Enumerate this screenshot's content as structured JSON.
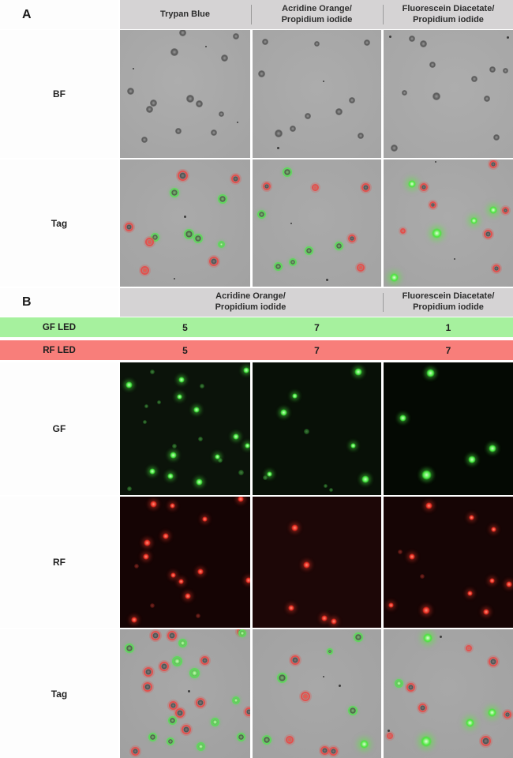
{
  "panel_a": {
    "label": "A",
    "column_headers": [
      "Trypan Blue",
      "Acridine Orange/\nPropidium iodide",
      "Fluorescein Diacetate/\nPropidium iodide"
    ],
    "row_labels": [
      "BF",
      "Tag"
    ]
  },
  "panel_b": {
    "label": "B",
    "column_headers": [
      "Acridine Orange/\nPropidium iodide",
      "Fluorescein Diacetate/\nPropidium iodide"
    ],
    "led_rows": [
      {
        "label": "GF LED",
        "values": [
          "5",
          "7",
          "1"
        ],
        "color": "#a6f19e"
      },
      {
        "label": "RF LED",
        "values": [
          "5",
          "7",
          "7"
        ],
        "color": "#f87e7a"
      }
    ],
    "row_labels": [
      "GF",
      "RF",
      "Tag"
    ]
  },
  "colors": {
    "header_gray": "#d5d3d4",
    "gf_led_bar": "#a6f19e",
    "rf_led_bar": "#f87e7a",
    "brightfield_gray": "#a9a9a9",
    "tag_gray": "#a4a4a4",
    "green_fluorescence": "#43e73d",
    "red_fluorescence": "#e92d21",
    "dead_ring": "#e2504d",
    "live_ring": "#5fd75c"
  },
  "tiles": {
    "a_bf_1": {
      "bg": "radial-gradient(circle at 45% 40%, #adadad, #a3a3a3)",
      "cells": [
        [
          0.48,
          0.02,
          "bf",
          9
        ],
        [
          0.89,
          0.05,
          "bf",
          8
        ],
        [
          0.42,
          0.17,
          "bf",
          10
        ],
        [
          0.8,
          0.22,
          "bf",
          9
        ],
        [
          0.08,
          0.48,
          "bf",
          9
        ],
        [
          0.26,
          0.57,
          "bf",
          9
        ],
        [
          0.23,
          0.62,
          "bf",
          9
        ],
        [
          0.54,
          0.54,
          "bf",
          10
        ],
        [
          0.61,
          0.58,
          "bf",
          9
        ],
        [
          0.78,
          0.66,
          "bf",
          7
        ],
        [
          0.45,
          0.79,
          "bf",
          8
        ],
        [
          0.72,
          0.8,
          "bf",
          8
        ],
        [
          0.19,
          0.86,
          "bf",
          8
        ],
        [
          0.66,
          0.13,
          "sp",
          2
        ],
        [
          0.1,
          0.3,
          "sp",
          2
        ],
        [
          0.9,
          0.72,
          "sp",
          2
        ]
      ]
    },
    "a_bf_2": {
      "bg": "radial-gradient(circle at 50% 45%, #acacac, #a4a4a4)",
      "cells": [
        [
          0.1,
          0.09,
          "bf",
          8
        ],
        [
          0.5,
          0.11,
          "bf",
          7
        ],
        [
          0.89,
          0.1,
          "bf",
          8
        ],
        [
          0.07,
          0.34,
          "bf",
          9
        ],
        [
          0.77,
          0.55,
          "bf",
          8
        ],
        [
          0.67,
          0.64,
          "bf",
          9
        ],
        [
          0.43,
          0.67,
          "bf",
          8
        ],
        [
          0.31,
          0.77,
          "bf",
          8
        ],
        [
          0.2,
          0.81,
          "bf",
          10
        ],
        [
          0.84,
          0.83,
          "bf",
          8
        ],
        [
          0.2,
          0.92,
          "sp",
          3
        ],
        [
          0.55,
          0.4,
          "sp",
          2
        ]
      ]
    },
    "a_bf_3": {
      "bg": "radial-gradient(circle at 55% 45%, #adadad, #a5a5a5)",
      "cells": [
        [
          0.22,
          0.07,
          "bf",
          8
        ],
        [
          0.31,
          0.11,
          "bf",
          9
        ],
        [
          0.38,
          0.27,
          "bf",
          8
        ],
        [
          0.84,
          0.31,
          "bf",
          8
        ],
        [
          0.94,
          0.32,
          "bf",
          7
        ],
        [
          0.7,
          0.38,
          "bf",
          8
        ],
        [
          0.16,
          0.49,
          "bf",
          7
        ],
        [
          0.41,
          0.52,
          "bf",
          10
        ],
        [
          0.8,
          0.54,
          "bf",
          8
        ],
        [
          0.87,
          0.84,
          "bf",
          8
        ],
        [
          0.08,
          0.92,
          "bf",
          9
        ],
        [
          0.05,
          0.05,
          "sp",
          3
        ],
        [
          0.96,
          0.06,
          "sp",
          3
        ]
      ]
    },
    "a_tag_1": {
      "bg": "radial-gradient(circle at 45% 45%, #aaaaaa, #a2a2a2)",
      "cells": [
        [
          0.48,
          0.13,
          "dead",
          13
        ],
        [
          0.89,
          0.15,
          "dead",
          11
        ],
        [
          0.42,
          0.26,
          "live",
          12
        ],
        [
          0.79,
          0.31,
          "live",
          12
        ],
        [
          0.07,
          0.53,
          "dead",
          11
        ],
        [
          0.27,
          0.61,
          "live",
          11
        ],
        [
          0.23,
          0.65,
          "deadr",
          11
        ],
        [
          0.53,
          0.59,
          "live",
          13
        ],
        [
          0.6,
          0.62,
          "live",
          12
        ],
        [
          0.78,
          0.67,
          "liveg",
          9
        ],
        [
          0.72,
          0.8,
          "dead",
          12
        ],
        [
          0.19,
          0.87,
          "deadr",
          11
        ],
        [
          0.5,
          0.45,
          "sp",
          3
        ],
        [
          0.42,
          0.94,
          "sp",
          2
        ]
      ]
    },
    "a_tag_2": {
      "bg": "radial-gradient(circle at 50% 45%, #aaaaaa, #a3a3a3)",
      "cells": [
        [
          0.27,
          0.1,
          "live",
          12
        ],
        [
          0.11,
          0.21,
          "dead",
          10
        ],
        [
          0.49,
          0.22,
          "deadr",
          9
        ],
        [
          0.88,
          0.22,
          "dead",
          11
        ],
        [
          0.07,
          0.43,
          "live",
          11
        ],
        [
          0.44,
          0.72,
          "live",
          11
        ],
        [
          0.67,
          0.68,
          "live",
          11
        ],
        [
          0.77,
          0.62,
          "dead",
          10
        ],
        [
          0.2,
          0.84,
          "live",
          11
        ],
        [
          0.31,
          0.81,
          "live",
          10
        ],
        [
          0.84,
          0.85,
          "deadr",
          10
        ],
        [
          0.58,
          0.95,
          "sp",
          3
        ],
        [
          0.3,
          0.5,
          "sp",
          2
        ]
      ]
    },
    "a_tag_3": {
      "bg": "radial-gradient(circle at 50% 45%, #ababab, #a3a3a3)",
      "cells": [
        [
          0.85,
          0.04,
          "dead",
          10
        ],
        [
          0.22,
          0.19,
          "glow",
          10
        ],
        [
          0.31,
          0.22,
          "dead",
          10
        ],
        [
          0.38,
          0.36,
          "dead",
          9
        ],
        [
          0.85,
          0.4,
          "glow",
          10
        ],
        [
          0.94,
          0.4,
          "dead",
          9
        ],
        [
          0.7,
          0.48,
          "glow",
          9
        ],
        [
          0.15,
          0.56,
          "deadr",
          7
        ],
        [
          0.41,
          0.58,
          "glow",
          13
        ],
        [
          0.81,
          0.59,
          "dead",
          11
        ],
        [
          0.87,
          0.86,
          "dead",
          10
        ],
        [
          0.08,
          0.93,
          "glow",
          11
        ],
        [
          0.4,
          0.02,
          "sp",
          2
        ],
        [
          0.55,
          0.78,
          "sp",
          2
        ]
      ]
    },
    "b_gf_1": {
      "bg": "#0b130a",
      "cells": [
        [
          0.07,
          0.17,
          "gf",
          9
        ],
        [
          0.25,
          0.07,
          "gfd",
          6
        ],
        [
          0.47,
          0.13,
          "gf",
          8
        ],
        [
          0.63,
          0.18,
          "gfd",
          6
        ],
        [
          0.97,
          0.06,
          "gf",
          8
        ],
        [
          0.46,
          0.26,
          "gf",
          7
        ],
        [
          0.3,
          0.3,
          "gfd",
          5
        ],
        [
          0.2,
          0.33,
          "gfd",
          5
        ],
        [
          0.59,
          0.36,
          "gf",
          8
        ],
        [
          0.19,
          0.45,
          "gfd",
          5
        ],
        [
          0.62,
          0.58,
          "gfd",
          6
        ],
        [
          0.89,
          0.56,
          "gf",
          8
        ],
        [
          0.42,
          0.63,
          "gfd",
          6
        ],
        [
          0.98,
          0.63,
          "gf",
          7
        ],
        [
          0.41,
          0.7,
          "gf",
          9
        ],
        [
          0.75,
          0.71,
          "gf",
          7
        ],
        [
          0.77,
          0.74,
          "gfd",
          6
        ],
        [
          0.25,
          0.82,
          "gf",
          8
        ],
        [
          0.39,
          0.86,
          "gf",
          8
        ],
        [
          0.61,
          0.9,
          "gf",
          9
        ],
        [
          0.93,
          0.83,
          "gfd",
          7
        ],
        [
          0.07,
          0.95,
          "gfd",
          6
        ]
      ]
    },
    "b_gf_2": {
      "bg": "#081007",
      "cells": [
        [
          0.82,
          0.07,
          "gf",
          10
        ],
        [
          0.33,
          0.25,
          "gf",
          7
        ],
        [
          0.24,
          0.38,
          "gf",
          9
        ],
        [
          0.42,
          0.52,
          "gfd",
          7
        ],
        [
          0.78,
          0.63,
          "gf",
          7
        ],
        [
          0.13,
          0.84,
          "gf",
          7
        ],
        [
          0.1,
          0.87,
          "gfd",
          6
        ],
        [
          0.88,
          0.88,
          "gf",
          10
        ],
        [
          0.57,
          0.93,
          "gfd",
          5
        ],
        [
          0.61,
          0.96,
          "gfd",
          5
        ]
      ]
    },
    "b_gf_3": {
      "bg": "#040903",
      "cells": [
        [
          0.36,
          0.08,
          "gf",
          11
        ],
        [
          0.15,
          0.42,
          "gf",
          9
        ],
        [
          0.84,
          0.65,
          "gf",
          10
        ],
        [
          0.68,
          0.73,
          "gf",
          10
        ],
        [
          0.33,
          0.85,
          "gf",
          13
        ]
      ]
    },
    "b_rf_1": {
      "bg": "#150404",
      "cells": [
        [
          0.26,
          0.06,
          "rf",
          9
        ],
        [
          0.4,
          0.07,
          "rf",
          7
        ],
        [
          0.93,
          0.02,
          "rf",
          8
        ],
        [
          0.65,
          0.17,
          "rf",
          7
        ],
        [
          0.35,
          0.3,
          "rf",
          8
        ],
        [
          0.21,
          0.35,
          "rf",
          9
        ],
        [
          0.2,
          0.46,
          "rf",
          8
        ],
        [
          0.13,
          0.53,
          "rfd",
          6
        ],
        [
          0.62,
          0.57,
          "rf",
          8
        ],
        [
          0.41,
          0.6,
          "rf",
          7
        ],
        [
          0.47,
          0.65,
          "rf",
          7
        ],
        [
          0.99,
          0.64,
          "rf",
          8
        ],
        [
          0.52,
          0.76,
          "rf",
          8
        ],
        [
          0.25,
          0.83,
          "rfd",
          6
        ],
        [
          0.6,
          0.91,
          "rfd",
          6
        ],
        [
          0.11,
          0.94,
          "rf",
          8
        ]
      ]
    },
    "b_rf_2": {
      "bg": "#1d0707",
      "cells": [
        [
          0.33,
          0.24,
          "rf",
          9
        ],
        [
          0.42,
          0.52,
          "rf",
          9
        ],
        [
          0.3,
          0.85,
          "rf",
          8
        ],
        [
          0.56,
          0.93,
          "rf",
          8
        ],
        [
          0.63,
          0.95,
          "rf",
          8
        ]
      ]
    },
    "b_rf_3": {
      "bg": "#160505",
      "cells": [
        [
          0.35,
          0.07,
          "rf",
          9
        ],
        [
          0.68,
          0.16,
          "rf",
          7
        ],
        [
          0.85,
          0.25,
          "rf",
          7
        ],
        [
          0.13,
          0.42,
          "rfd",
          6
        ],
        [
          0.22,
          0.46,
          "rf",
          8
        ],
        [
          0.3,
          0.61,
          "rfd",
          6
        ],
        [
          0.84,
          0.64,
          "rf",
          7
        ],
        [
          0.97,
          0.67,
          "rf",
          8
        ],
        [
          0.67,
          0.74,
          "rf",
          7
        ],
        [
          0.06,
          0.83,
          "rf",
          7
        ],
        [
          0.33,
          0.87,
          "rf",
          10
        ],
        [
          0.79,
          0.88,
          "rf",
          8
        ]
      ]
    },
    "b_tag_1": {
      "bg": "radial-gradient(circle at 50% 45%, #a8a8a8, #a0a0a0)",
      "cells": [
        [
          0.27,
          0.05,
          "dead",
          12
        ],
        [
          0.4,
          0.05,
          "dead",
          12
        ],
        [
          0.93,
          0.02,
          "dead",
          10
        ],
        [
          0.65,
          0.24,
          "dead",
          11
        ],
        [
          0.34,
          0.29,
          "dead",
          12
        ],
        [
          0.22,
          0.33,
          "dead",
          12
        ],
        [
          0.21,
          0.45,
          "dead",
          12
        ],
        [
          0.62,
          0.57,
          "dead",
          12
        ],
        [
          0.41,
          0.59,
          "dead",
          11
        ],
        [
          0.46,
          0.65,
          "dead",
          12
        ],
        [
          0.99,
          0.64,
          "dead",
          11
        ],
        [
          0.51,
          0.78,
          "dead",
          12
        ],
        [
          0.12,
          0.95,
          "dead",
          11
        ],
        [
          0.07,
          0.15,
          "live",
          12
        ],
        [
          0.48,
          0.11,
          "liveg",
          11
        ],
        [
          0.94,
          0.03,
          "liveg",
          10
        ],
        [
          0.44,
          0.25,
          "liveg",
          13
        ],
        [
          0.57,
          0.34,
          "liveg",
          13
        ],
        [
          0.89,
          0.55,
          "liveg",
          10
        ],
        [
          0.4,
          0.71,
          "live",
          11
        ],
        [
          0.73,
          0.72,
          "liveg",
          11
        ],
        [
          0.25,
          0.84,
          "live",
          11
        ],
        [
          0.39,
          0.87,
          "live",
          10
        ],
        [
          0.62,
          0.91,
          "liveg",
          11
        ],
        [
          0.93,
          0.84,
          "live",
          11
        ],
        [
          0.53,
          0.48,
          "sp",
          3
        ]
      ]
    },
    "b_tag_2": {
      "bg": "radial-gradient(circle at 50% 45%, #a8a8a8, #a1a1a1)",
      "cells": [
        [
          0.82,
          0.06,
          "live",
          12
        ],
        [
          0.6,
          0.17,
          "live",
          8
        ],
        [
          0.33,
          0.24,
          "dead",
          12
        ],
        [
          0.23,
          0.38,
          "live",
          13
        ],
        [
          0.41,
          0.52,
          "deadr",
          12
        ],
        [
          0.78,
          0.63,
          "live",
          12
        ],
        [
          0.11,
          0.86,
          "live",
          12
        ],
        [
          0.29,
          0.86,
          "deadr",
          10
        ],
        [
          0.56,
          0.94,
          "dead",
          11
        ],
        [
          0.63,
          0.95,
          "dead",
          11
        ],
        [
          0.87,
          0.89,
          "glow",
          11
        ],
        [
          0.55,
          0.37,
          "sp",
          2
        ],
        [
          0.68,
          0.44,
          "sp",
          3
        ]
      ]
    },
    "b_tag_3": {
      "bg": "radial-gradient(circle at 50% 45%, #a8a8a8, #a1a1a1)",
      "cells": [
        [
          0.34,
          0.07,
          "glow",
          12
        ],
        [
          0.66,
          0.15,
          "deadr",
          8
        ],
        [
          0.85,
          0.25,
          "dead",
          12
        ],
        [
          0.12,
          0.42,
          "liveg",
          11
        ],
        [
          0.21,
          0.45,
          "dead",
          11
        ],
        [
          0.3,
          0.61,
          "dead",
          11
        ],
        [
          0.84,
          0.65,
          "glow",
          11
        ],
        [
          0.96,
          0.66,
          "dead",
          10
        ],
        [
          0.67,
          0.73,
          "glow",
          11
        ],
        [
          0.05,
          0.83,
          "deadr",
          8
        ],
        [
          0.33,
          0.87,
          "glow",
          14
        ],
        [
          0.79,
          0.87,
          "dead",
          13
        ],
        [
          0.44,
          0.06,
          "sp",
          3
        ],
        [
          0.04,
          0.79,
          "sp",
          3
        ]
      ]
    }
  }
}
